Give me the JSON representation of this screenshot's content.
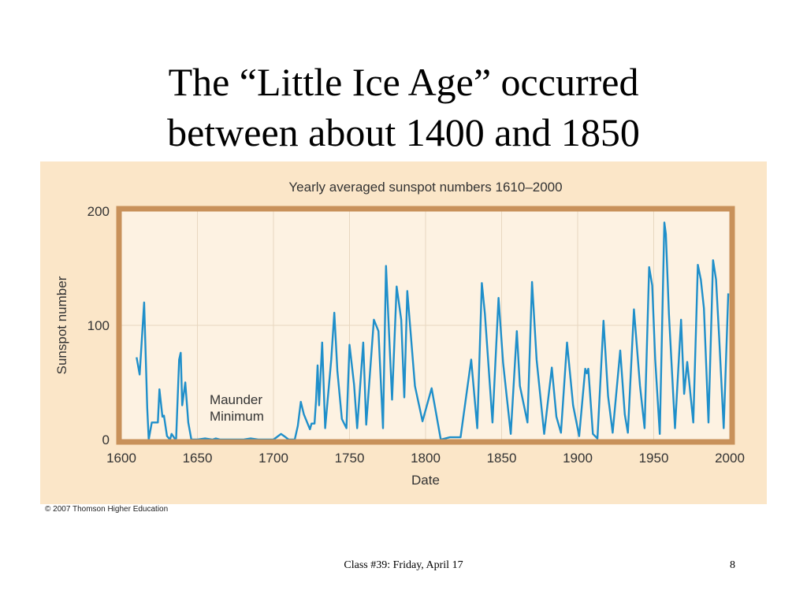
{
  "slide": {
    "title_line1": "The “Little Ice Age” occurred",
    "title_line2": "between about 1400 and 1850",
    "footer": "Class #39: Friday, April 17",
    "page_number": "8"
  },
  "figure": {
    "copyright": "© 2007 Thomson Higher Education"
  },
  "colors": {
    "panel_background": "#fbe6c8",
    "plot_frame": "#c8915a",
    "line": "#1f8fca",
    "grid": "#e8d7c0"
  },
  "chart_data": {
    "type": "line",
    "title": "Yearly averaged sunspot numbers 1610–2000",
    "xlabel": "Date",
    "ylabel": "Sunspot number",
    "xlim": [
      1600,
      2000
    ],
    "ylim": [
      0,
      200
    ],
    "x_ticks": [
      1600,
      1650,
      1700,
      1750,
      1800,
      1850,
      1900,
      1950,
      2000
    ],
    "y_ticks": [
      0,
      100,
      200
    ],
    "grid": true,
    "annotations": [
      {
        "text_line1": "Maunder",
        "text_line2": "Minimum",
        "x": 1658,
        "y": 18
      }
    ],
    "series": [
      {
        "x": [
          1610,
          1612,
          1615,
          1617,
          1618,
          1620,
          1622,
          1624,
          1625,
          1627,
          1628,
          1630,
          1632,
          1633,
          1635,
          1636,
          1638,
          1639,
          1640,
          1642,
          1644,
          1646,
          1650,
          1655,
          1660,
          1662,
          1665,
          1670,
          1675,
          1680,
          1685,
          1690,
          1695,
          1700,
          1702,
          1705,
          1707,
          1710,
          1712,
          1714,
          1716,
          1718,
          1720,
          1724,
          1725,
          1727,
          1728,
          1729,
          1730,
          1732,
          1734,
          1738,
          1740,
          1742,
          1745,
          1748,
          1750,
          1753,
          1755,
          1759,
          1761,
          1766,
          1769,
          1772,
          1774,
          1778,
          1781,
          1784,
          1786,
          1788,
          1793,
          1798,
          1804,
          1810,
          1816,
          1823,
          1830,
          1834,
          1837,
          1839,
          1844,
          1848,
          1851,
          1856,
          1860,
          1862,
          1867,
          1870,
          1873,
          1878,
          1883,
          1886,
          1889,
          1893,
          1897,
          1901,
          1905,
          1906,
          1907,
          1910,
          1913,
          1917,
          1920,
          1923,
          1928,
          1931,
          1933,
          1937,
          1941,
          1944,
          1947,
          1949,
          1951,
          1954,
          1957,
          1958,
          1960,
          1964,
          1968,
          1970,
          1972,
          1976,
          1979,
          1981,
          1983,
          1986,
          1989,
          1991,
          1993,
          1996,
          1999
        ],
        "values": [
          72,
          57,
          120,
          28,
          0,
          15,
          15,
          15,
          44,
          20,
          21,
          3,
          0,
          5,
          1,
          1,
          70,
          76,
          30,
          50,
          15,
          0,
          0,
          1,
          0,
          1,
          0,
          0,
          0,
          0,
          1,
          0,
          0,
          0,
          2,
          5,
          3,
          0,
          0,
          0,
          12,
          33,
          22,
          9,
          14,
          14,
          34,
          65,
          30,
          85,
          10,
          70,
          111,
          60,
          18,
          10,
          83,
          48,
          10,
          85,
          13,
          105,
          95,
          10,
          152,
          35,
          134,
          105,
          37,
          130,
          47,
          16,
          45,
          0,
          2,
          2,
          70,
          10,
          137,
          110,
          15,
          124,
          67,
          5,
          95,
          47,
          15,
          138,
          70,
          5,
          63,
          20,
          6,
          85,
          30,
          3,
          62,
          58,
          62,
          5,
          1,
          104,
          38,
          6,
          78,
          22,
          6,
          114,
          47,
          10,
          151,
          135,
          70,
          5,
          190,
          180,
          110,
          10,
          105,
          40,
          68,
          15,
          153,
          140,
          115,
          15,
          157,
          140,
          90,
          10,
          128
        ]
      }
    ]
  }
}
